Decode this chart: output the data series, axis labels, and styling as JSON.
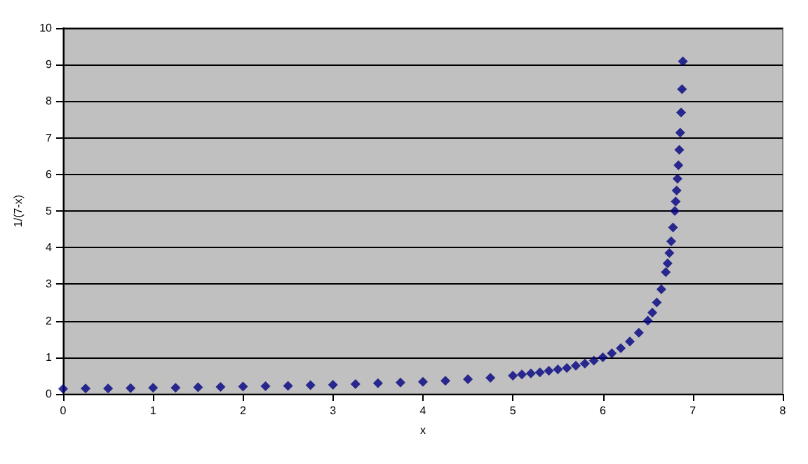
{
  "chart_data": {
    "type": "scatter",
    "xlabel": "x",
    "ylabel": "1/(7-x)",
    "x": [
      0,
      0.25,
      0.5,
      0.75,
      1,
      1.25,
      1.5,
      1.75,
      2,
      2.25,
      2.5,
      2.75,
      3,
      3.25,
      3.5,
      3.75,
      4,
      4.25,
      4.5,
      4.75,
      5,
      5.1,
      5.2,
      5.3,
      5.4,
      5.5,
      5.6,
      5.7,
      5.8,
      5.9,
      6,
      6.1,
      6.2,
      6.3,
      6.4,
      6.5,
      6.55,
      6.6,
      6.65,
      6.7,
      6.72,
      6.74,
      6.76,
      6.78,
      6.8,
      6.81,
      6.82,
      6.83,
      6.84,
      6.85,
      6.86,
      6.87,
      6.88,
      6.89
    ],
    "series": [
      {
        "color": "#000080",
        "values": [
          0.14,
          0.15,
          0.15,
          0.16,
          0.17,
          0.17,
          0.18,
          0.19,
          0.2,
          0.21,
          0.22,
          0.24,
          0.25,
          0.27,
          0.29,
          0.31,
          0.33,
          0.36,
          0.4,
          0.44,
          0.5,
          0.53,
          0.56,
          0.59,
          0.63,
          0.67,
          0.71,
          0.77,
          0.83,
          0.91,
          1,
          1.11,
          1.25,
          1.43,
          1.67,
          2,
          2.22,
          2.5,
          2.86,
          3.33,
          3.57,
          3.85,
          4.17,
          4.55,
          5,
          5.26,
          5.56,
          5.88,
          6.25,
          6.67,
          7.14,
          7.69,
          8.33,
          9.09
        ]
      }
    ],
    "xlim": [
      0,
      8
    ],
    "xticks": [
      0,
      1,
      2,
      3,
      4,
      5,
      6,
      7,
      8
    ],
    "ylim": [
      0,
      10
    ],
    "yticks": [
      0,
      1,
      2,
      3,
      4,
      5,
      6,
      7,
      8,
      9,
      10
    ],
    "grid": "y",
    "marker": "diamond"
  }
}
